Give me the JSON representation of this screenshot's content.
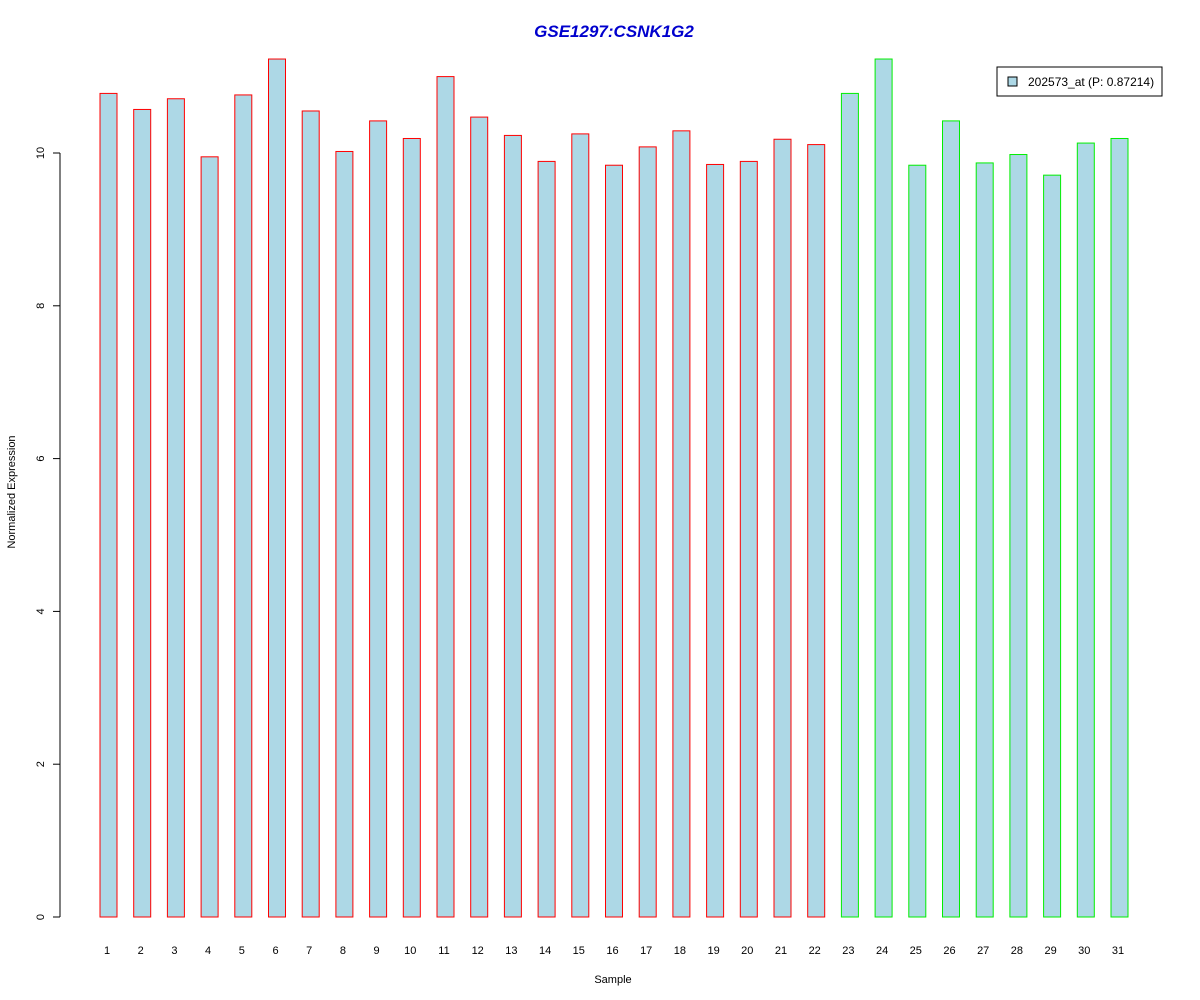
{
  "chart_data": {
    "type": "bar",
    "title": "GSE1297:CSNK1G2",
    "xlabel": "Sample",
    "ylabel": "Normalized Expression",
    "categories": [
      "1",
      "2",
      "3",
      "4",
      "5",
      "6",
      "7",
      "8",
      "9",
      "10",
      "11",
      "12",
      "13",
      "14",
      "15",
      "16",
      "17",
      "18",
      "19",
      "20",
      "21",
      "22",
      "23",
      "24",
      "25",
      "26",
      "27",
      "28",
      "29",
      "30",
      "31"
    ],
    "series": [
      {
        "name": "202573_at (P: 0.87214)",
        "values": [
          10.78,
          10.57,
          10.71,
          9.95,
          10.76,
          11.23,
          10.55,
          10.02,
          10.42,
          10.19,
          11.0,
          10.47,
          10.23,
          9.89,
          10.25,
          9.84,
          10.08,
          10.29,
          9.85,
          9.89,
          10.18,
          10.11,
          10.78,
          11.23,
          9.84,
          10.42,
          9.87,
          9.98,
          9.71,
          10.13,
          10.19
        ]
      }
    ],
    "groups": [
      {
        "range": [
          1,
          22
        ],
        "border_color": "#ff0000"
      },
      {
        "range": [
          23,
          31
        ],
        "border_color": "#00ee00"
      }
    ],
    "yticks": [
      0,
      2,
      4,
      6,
      8,
      10
    ],
    "ylim": [
      0,
      11.23
    ],
    "grid": false,
    "legend_position": "top-right"
  },
  "colors": {
    "bar_fill": "#add8e6",
    "title_color": "#0000cd",
    "axis_color": "#000000"
  }
}
